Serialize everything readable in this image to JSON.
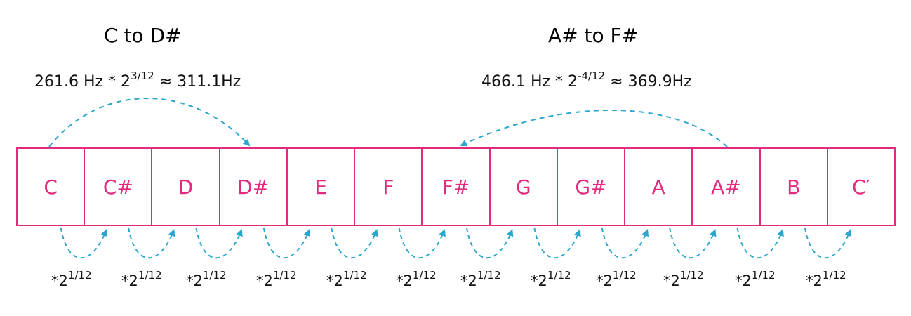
{
  "titles": {
    "left": "C to D#",
    "right": "A# to F#"
  },
  "formulas": {
    "left": {
      "base": "261.6 Hz * 2",
      "exp": "3/12",
      "result": " ≈ 311.1Hz"
    },
    "right": {
      "base": "466.1 Hz * 2",
      "exp": "-4/12",
      "result": " ≈ 369.9Hz"
    }
  },
  "keys": [
    "C",
    "C#",
    "D",
    "D#",
    "E",
    "F",
    "F#",
    "G",
    "G#",
    "A",
    "A#",
    "B",
    "C′"
  ],
  "step": {
    "base": "*2",
    "exp": "1/12"
  },
  "colors": {
    "key_border": "#e22b7e",
    "key_text": "#e22b7e",
    "arrow": "#2aa7cf"
  }
}
